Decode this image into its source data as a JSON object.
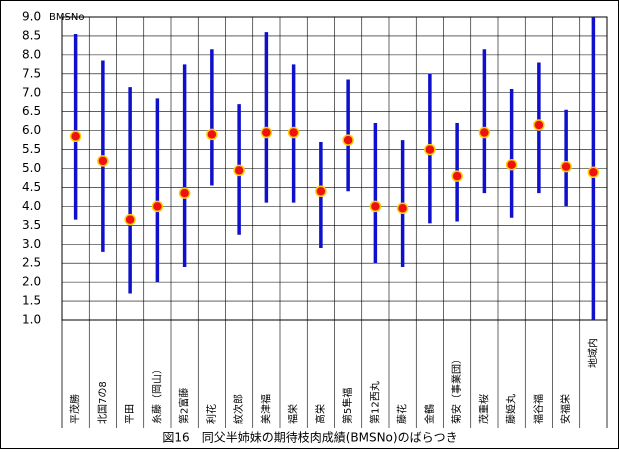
{
  "chart_data": {
    "type": "range",
    "title": "図16　同父半姉妹の期待枝肉成績(BMSNo)のばらつき",
    "y_unit": "BMSNo",
    "categories": [
      "平茂勝",
      "北国7の8",
      "平田",
      "糸藤（岡山）",
      "第2富藤",
      "利花",
      "紋次郎",
      "美津福",
      "福栄",
      "高栄",
      "第5隼福",
      "第12西丸",
      "藤花",
      "金鶴",
      "菊安（事業団）",
      "茂重桜",
      "藤姫丸",
      "福谷福",
      "安福栄",
      "地域内"
    ],
    "high": [
      8.55,
      7.85,
      7.15,
      6.85,
      7.75,
      8.15,
      6.7,
      8.6,
      7.75,
      5.7,
      7.35,
      6.2,
      5.75,
      7.5,
      6.2,
      8.15,
      7.1,
      7.8,
      6.55,
      9.1
    ],
    "low": [
      3.65,
      2.8,
      1.7,
      2.0,
      2.4,
      4.55,
      3.25,
      4.1,
      4.1,
      2.9,
      4.4,
      2.5,
      2.4,
      3.55,
      3.6,
      4.35,
      3.7,
      4.35,
      4.0,
      0.9
    ],
    "mean": [
      5.85,
      5.2,
      3.65,
      4.0,
      4.35,
      5.9,
      4.95,
      5.95,
      5.95,
      4.4,
      5.75,
      4.0,
      3.95,
      5.5,
      4.8,
      5.95,
      5.1,
      6.15,
      5.05,
      4.9
    ],
    "range_color": "#1010cc",
    "mean_color": "#ee1111",
    "mean_edge": "#ffcc00",
    "ylim": [
      1,
      9
    ],
    "yticks": [
      {
        "value": 1,
        "label": "1.0"
      },
      1.5,
      {
        "value": 2,
        "label": "2.0"
      },
      2.5,
      {
        "value": 3,
        "label": "3.0"
      },
      3.5,
      {
        "value": 4,
        "label": "4.0"
      },
      4.5,
      {
        "value": 5,
        "label": "5.0"
      },
      5.5,
      {
        "value": 6,
        "label": "6.0"
      },
      6.5,
      {
        "value": 7,
        "label": "7.0"
      },
      7.5,
      {
        "value": 8,
        "label": "8.0"
      },
      8.5,
      {
        "value": 9,
        "label": "9.0"
      }
    ],
    "grid": true
  }
}
